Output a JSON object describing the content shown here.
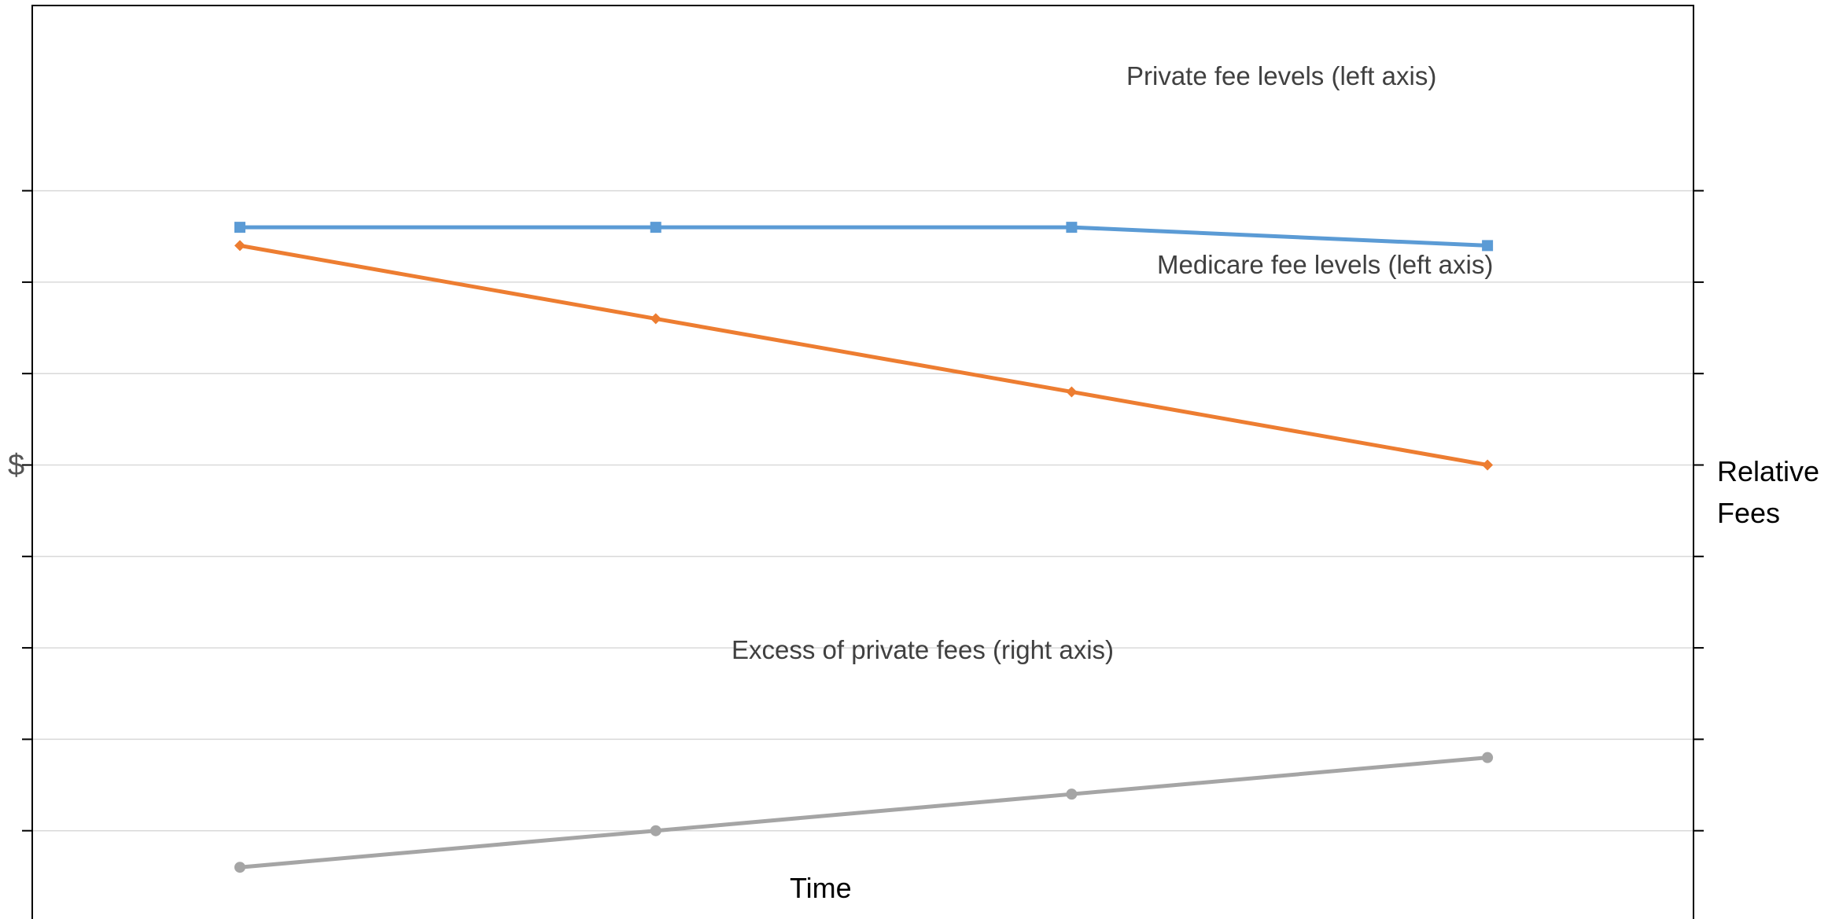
{
  "chart_data": {
    "type": "line",
    "title": "",
    "xlabel": "Time",
    "ylabel_left": "$",
    "ylabel_right": [
      "Relative",
      "Fees"
    ],
    "categories": [
      "",
      "",
      "",
      ""
    ],
    "grid": true,
    "ylim": [
      0,
      10
    ],
    "series": [
      {
        "name": "Private fee levels (left axis)",
        "axis": "left",
        "color": "#5B9BD5",
        "marker": "square",
        "values": [
          7.6,
          7.6,
          7.6,
          7.4
        ]
      },
      {
        "name": "Medicare fee levels (left axis)",
        "axis": "left",
        "color": "#ED7D31",
        "marker": "diamond",
        "values": [
          7.4,
          6.6,
          5.8,
          5.0
        ]
      },
      {
        "name": "Excess of private fees (right axis)",
        "axis": "right",
        "color": "#A5A5A5",
        "marker": "circle",
        "values": [
          0.6,
          1.0,
          1.4,
          1.8
        ]
      }
    ]
  }
}
